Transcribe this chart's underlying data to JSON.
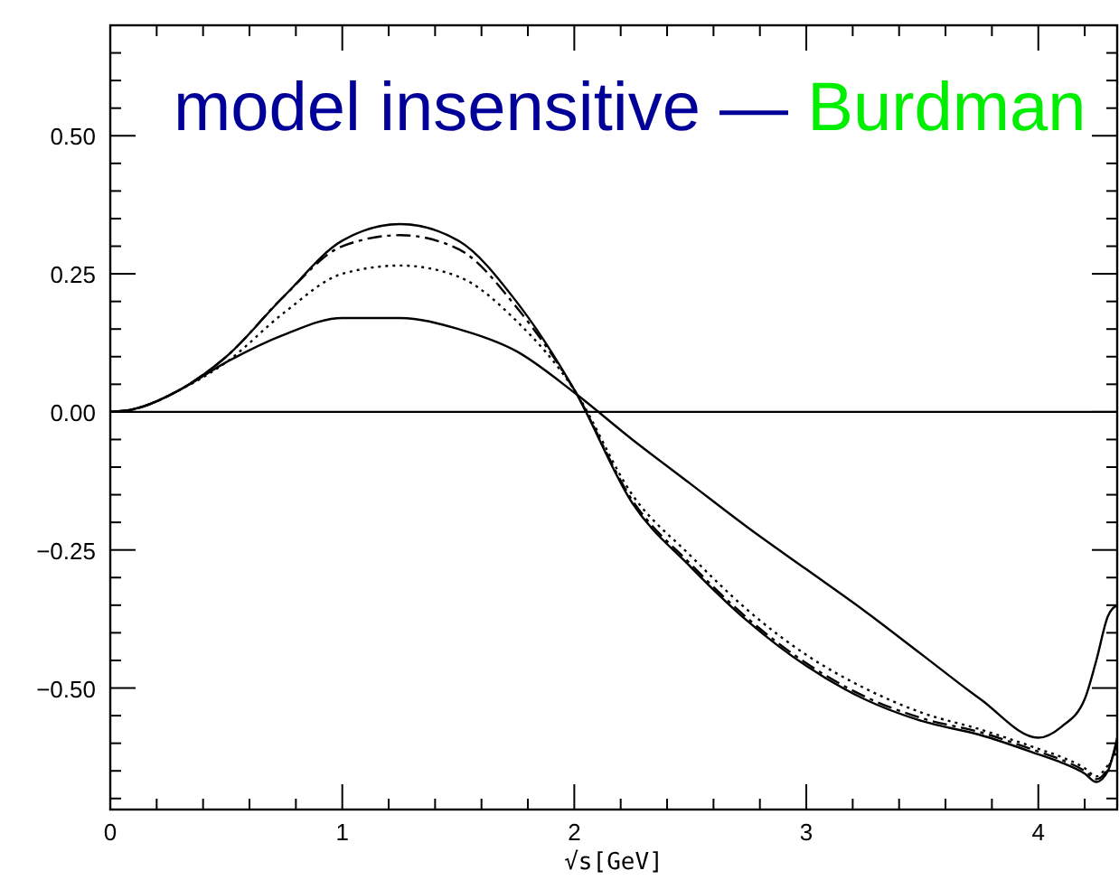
{
  "chart_data": {
    "type": "line",
    "xlabel": "√s[GeV]",
    "annotations": [
      "model insensitive —",
      "Burdman"
    ],
    "x": [
      0,
      0.1,
      0.3,
      0.5,
      0.75,
      1.0,
      1.25,
      1.5,
      1.75,
      2.0,
      2.25,
      2.5,
      2.75,
      3.0,
      3.25,
      3.5,
      3.75,
      4.0,
      4.1,
      4.2,
      4.25,
      4.3,
      4.34
    ],
    "series": [
      {
        "color": "#000000",
        "line_style": "solid",
        "values": [
          0,
          0.005,
          0.04,
          0.1,
          0.21,
          0.31,
          0.34,
          0.31,
          0.2,
          0.04,
          -0.165,
          -0.28,
          -0.38,
          -0.46,
          -0.52,
          -0.56,
          -0.585,
          -0.62,
          -0.635,
          -0.655,
          -0.67,
          -0.65,
          -0.59
        ]
      },
      {
        "color": "#000000",
        "line_style": "dashed",
        "values": [
          0,
          0.005,
          0.04,
          0.1,
          0.21,
          0.3,
          0.32,
          0.295,
          0.19,
          0.04,
          -0.16,
          -0.275,
          -0.375,
          -0.455,
          -0.515,
          -0.555,
          -0.58,
          -0.615,
          -0.63,
          -0.65,
          -0.665,
          -0.645,
          -0.6
        ]
      },
      {
        "color": "#000000",
        "line_style": "dotted",
        "values": [
          0,
          0.005,
          0.04,
          0.09,
          0.18,
          0.25,
          0.265,
          0.245,
          0.165,
          0.04,
          -0.15,
          -0.26,
          -0.36,
          -0.44,
          -0.5,
          -0.545,
          -0.575,
          -0.61,
          -0.625,
          -0.645,
          -0.66,
          -0.64,
          -0.615
        ]
      },
      {
        "color": "#000000",
        "line_style": "solid",
        "values": [
          0,
          0.005,
          0.04,
          0.09,
          0.14,
          0.17,
          0.17,
          0.15,
          0.11,
          0.035,
          -0.05,
          -0.13,
          -0.21,
          -0.285,
          -0.36,
          -0.44,
          -0.52,
          -0.59,
          -0.57,
          -0.52,
          -0.45,
          -0.37,
          -0.35
        ]
      }
    ],
    "xlim": [
      0,
      4.34
    ],
    "ylim": [
      -0.72,
      0.7
    ],
    "xticks": [
      0,
      {
        "value": 0.2,
        "label": null
      },
      {
        "value": 0.4,
        "label": null
      },
      {
        "value": 0.6,
        "label": null
      },
      {
        "value": 0.8,
        "label": null
      },
      1,
      {
        "value": 1.2,
        "label": null
      },
      {
        "value": 1.4,
        "label": null
      },
      {
        "value": 1.6,
        "label": null
      },
      {
        "value": 1.8,
        "label": null
      },
      2,
      {
        "value": 2.2,
        "label": null
      },
      {
        "value": 2.4,
        "label": null
      },
      {
        "value": 2.6,
        "label": null
      },
      {
        "value": 2.8,
        "label": null
      },
      3,
      {
        "value": 3.2,
        "label": null
      },
      {
        "value": 3.4,
        "label": null
      },
      {
        "value": 3.6,
        "label": null
      },
      {
        "value": 3.8,
        "label": null
      },
      4,
      {
        "value": 4.2,
        "label": null
      }
    ],
    "yticks": [
      {
        "value": -0.7,
        "label": null
      },
      {
        "value": -0.65,
        "label": null
      },
      {
        "value": -0.6,
        "label": null
      },
      {
        "value": -0.55,
        "label": null
      },
      {
        "value": -0.5,
        "label": "−0.50"
      },
      {
        "value": -0.45,
        "label": null
      },
      {
        "value": -0.4,
        "label": null
      },
      {
        "value": -0.35,
        "label": null
      },
      {
        "value": -0.3,
        "label": null
      },
      {
        "value": -0.25,
        "label": "−0.25"
      },
      {
        "value": -0.2,
        "label": null
      },
      {
        "value": -0.15,
        "label": null
      },
      {
        "value": -0.1,
        "label": null
      },
      {
        "value": -0.05,
        "label": null
      },
      {
        "value": 0,
        "label": "0.00"
      },
      {
        "value": 0.05,
        "label": null
      },
      {
        "value": 0.1,
        "label": null
      },
      {
        "value": 0.15,
        "label": null
      },
      {
        "value": 0.2,
        "label": null
      },
      {
        "value": 0.25,
        "label": "0.25"
      },
      {
        "value": 0.3,
        "label": null
      },
      {
        "value": 0.35,
        "label": null
      },
      {
        "value": 0.4,
        "label": null
      },
      {
        "value": 0.45,
        "label": null
      },
      {
        "value": 0.5,
        "label": "0.50"
      },
      {
        "value": 0.55,
        "label": null
      },
      {
        "value": 0.6,
        "label": null
      },
      {
        "value": 0.65,
        "label": null
      }
    ],
    "ref_lines": [
      {
        "axis": "y",
        "value": 0,
        "color": "#000000",
        "line_style": "solid"
      }
    ],
    "grid": false
  }
}
